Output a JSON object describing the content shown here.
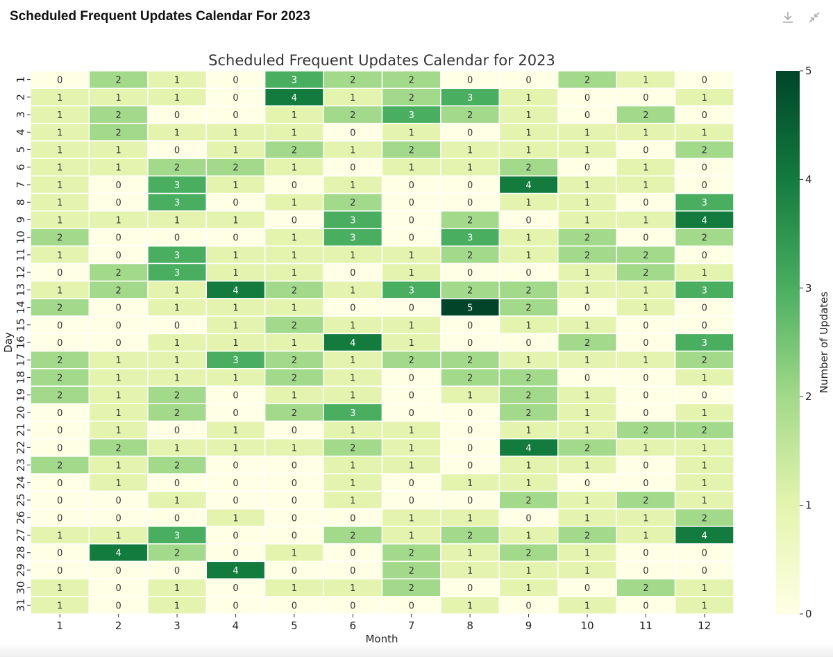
{
  "header": {
    "title": "Scheduled Frequent Updates Calendar For 2023",
    "icons": [
      "download-icon",
      "minimize-icon"
    ]
  },
  "chart_data": {
    "type": "heatmap",
    "title": "Scheduled Frequent Updates Calendar for 2023",
    "xlabel": "Month",
    "ylabel": "Day",
    "colorbar_label": "Number of Updates",
    "colormap": "YlGn",
    "vmin": 0,
    "vmax": 5,
    "colorbar_ticks": [
      "0",
      "1",
      "2",
      "3",
      "4",
      "5"
    ],
    "x": [
      "1",
      "2",
      "3",
      "4",
      "5",
      "6",
      "7",
      "8",
      "9",
      "10",
      "11",
      "12"
    ],
    "y": [
      "1",
      "2",
      "3",
      "4",
      "5",
      "6",
      "7",
      "8",
      "9",
      "10",
      "11",
      "12",
      "13",
      "14",
      "15",
      "16",
      "17",
      "18",
      "19",
      "20",
      "21",
      "22",
      "23",
      "24",
      "25",
      "26",
      "27",
      "28",
      "29",
      "30",
      "31"
    ],
    "values": [
      [
        0,
        2,
        1,
        0,
        3,
        2,
        2,
        0,
        0,
        2,
        1,
        0
      ],
      [
        1,
        1,
        1,
        0,
        4,
        1,
        2,
        3,
        1,
        0,
        0,
        1
      ],
      [
        1,
        2,
        0,
        0,
        1,
        2,
        3,
        2,
        1,
        0,
        2,
        0
      ],
      [
        1,
        2,
        1,
        1,
        1,
        0,
        1,
        0,
        1,
        1,
        1,
        1
      ],
      [
        1,
        1,
        0,
        1,
        2,
        1,
        2,
        1,
        1,
        1,
        0,
        2
      ],
      [
        1,
        1,
        2,
        2,
        1,
        0,
        1,
        1,
        2,
        0,
        1,
        0
      ],
      [
        1,
        0,
        3,
        1,
        0,
        1,
        0,
        0,
        4,
        1,
        1,
        0
      ],
      [
        1,
        0,
        3,
        0,
        1,
        2,
        0,
        0,
        1,
        1,
        0,
        3
      ],
      [
        1,
        1,
        1,
        1,
        0,
        3,
        0,
        2,
        0,
        1,
        1,
        4
      ],
      [
        2,
        0,
        0,
        0,
        1,
        3,
        0,
        3,
        1,
        2,
        0,
        2
      ],
      [
        1,
        0,
        3,
        1,
        1,
        1,
        1,
        2,
        1,
        2,
        2,
        0
      ],
      [
        0,
        2,
        3,
        1,
        1,
        0,
        1,
        0,
        0,
        1,
        2,
        1
      ],
      [
        1,
        2,
        1,
        4,
        2,
        1,
        3,
        2,
        2,
        1,
        1,
        3
      ],
      [
        2,
        0,
        1,
        1,
        1,
        0,
        0,
        5,
        2,
        0,
        1,
        0
      ],
      [
        0,
        0,
        0,
        1,
        2,
        1,
        1,
        0,
        1,
        1,
        0,
        0
      ],
      [
        0,
        0,
        1,
        1,
        1,
        4,
        1,
        0,
        0,
        2,
        0,
        3
      ],
      [
        2,
        1,
        1,
        3,
        2,
        1,
        2,
        2,
        1,
        1,
        1,
        2
      ],
      [
        2,
        1,
        1,
        1,
        2,
        1,
        0,
        2,
        2,
        0,
        0,
        1
      ],
      [
        2,
        1,
        2,
        0,
        1,
        1,
        0,
        1,
        2,
        1,
        0,
        0
      ],
      [
        0,
        1,
        2,
        0,
        2,
        3,
        0,
        0,
        2,
        1,
        0,
        1
      ],
      [
        0,
        1,
        0,
        1,
        0,
        1,
        1,
        0,
        1,
        1,
        2,
        2
      ],
      [
        0,
        2,
        1,
        1,
        1,
        2,
        1,
        0,
        4,
        2,
        1,
        1
      ],
      [
        2,
        1,
        2,
        0,
        0,
        1,
        1,
        0,
        1,
        1,
        0,
        1
      ],
      [
        0,
        1,
        0,
        0,
        0,
        1,
        0,
        1,
        1,
        0,
        0,
        1
      ],
      [
        0,
        0,
        1,
        0,
        0,
        1,
        0,
        0,
        2,
        1,
        2,
        1
      ],
      [
        0,
        0,
        0,
        1,
        0,
        0,
        1,
        1,
        0,
        1,
        1,
        2
      ],
      [
        1,
        1,
        3,
        0,
        0,
        2,
        1,
        2,
        1,
        2,
        1,
        4
      ],
      [
        0,
        4,
        2,
        0,
        1,
        0,
        2,
        1,
        2,
        1,
        0,
        0
      ],
      [
        0,
        0,
        0,
        4,
        0,
        0,
        2,
        1,
        1,
        1,
        0,
        0
      ],
      [
        1,
        0,
        1,
        0,
        1,
        1,
        2,
        0,
        1,
        0,
        2,
        1
      ],
      [
        1,
        0,
        1,
        0,
        0,
        0,
        0,
        1,
        0,
        1,
        0,
        1
      ]
    ],
    "colors": [
      "#ffffe5",
      "#e4f4ae",
      "#a3d98a",
      "#4aae61",
      "#137b3e",
      "#004529"
    ]
  }
}
